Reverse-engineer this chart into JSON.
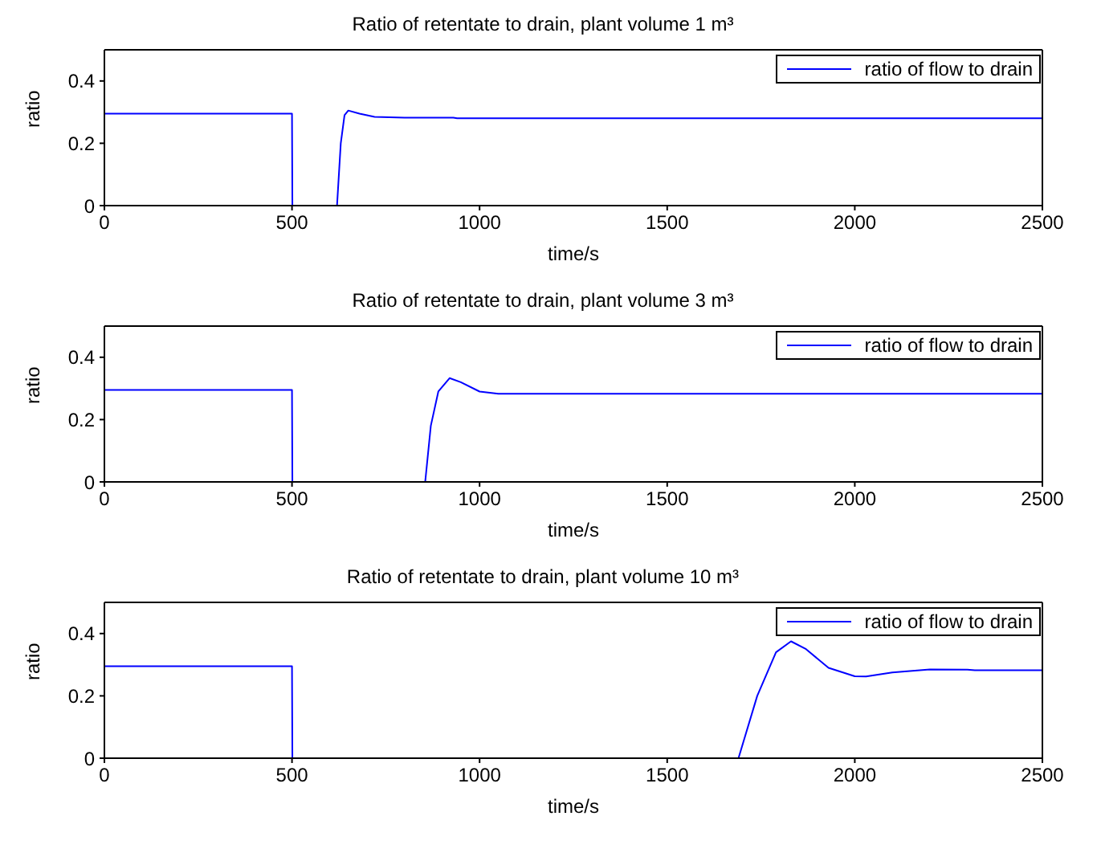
{
  "chart_data": [
    {
      "type": "line",
      "title": "Ratio of retentate to drain, plant volume 1 m³",
      "xlabel": "time/s",
      "ylabel": "ratio",
      "xlim": [
        0,
        2500
      ],
      "ylim": [
        0,
        0.5
      ],
      "xticks": [
        0,
        500,
        1000,
        1500,
        2000,
        2500
      ],
      "yticks": [
        0,
        0.2,
        0.4
      ],
      "legend": "top right",
      "x": [
        0,
        500,
        501,
        620,
        630,
        640,
        650,
        680,
        720,
        800,
        930,
        940,
        2500
      ],
      "series": [
        {
          "name": "ratio of flow to drain",
          "color": "#0000ff",
          "values": [
            0.295,
            0.295,
            0,
            0,
            0.2,
            0.29,
            0.305,
            0.295,
            0.285,
            0.282,
            0.282,
            0.28,
            0.28
          ]
        }
      ]
    },
    {
      "type": "line",
      "title": "Ratio of retentate to drain, plant volume 3 m³",
      "xlabel": "time/s",
      "ylabel": "ratio",
      "xlim": [
        0,
        2500
      ],
      "ylim": [
        0,
        0.5
      ],
      "xticks": [
        0,
        500,
        1000,
        1500,
        2000,
        2500
      ],
      "yticks": [
        0,
        0.2,
        0.4
      ],
      "legend": "top right",
      "x": [
        0,
        500,
        501,
        855,
        870,
        890,
        920,
        950,
        1000,
        1050,
        2500
      ],
      "series": [
        {
          "name": "ratio of flow to drain",
          "color": "#0000ff",
          "values": [
            0.295,
            0.295,
            0,
            0,
            0.18,
            0.29,
            0.333,
            0.32,
            0.29,
            0.283,
            0.283
          ]
        }
      ]
    },
    {
      "type": "line",
      "title": "Ratio of retentate to drain, plant volume 10 m³",
      "xlabel": "time/s",
      "ylabel": "ratio",
      "xlim": [
        0,
        2500
      ],
      "ylim": [
        0,
        0.5
      ],
      "xticks": [
        0,
        500,
        1000,
        1500,
        2000,
        2500
      ],
      "yticks": [
        0,
        0.2,
        0.4
      ],
      "legend": "top right",
      "x": [
        0,
        500,
        501,
        1690,
        1740,
        1790,
        1830,
        1870,
        1930,
        2000,
        2030,
        2100,
        2200,
        2300,
        2320,
        2500
      ],
      "series": [
        {
          "name": "ratio of flow to drain",
          "color": "#0000ff",
          "values": [
            0.295,
            0.295,
            0,
            0,
            0.2,
            0.34,
            0.375,
            0.35,
            0.29,
            0.263,
            0.262,
            0.275,
            0.285,
            0.284,
            0.282,
            0.282
          ]
        }
      ]
    }
  ]
}
